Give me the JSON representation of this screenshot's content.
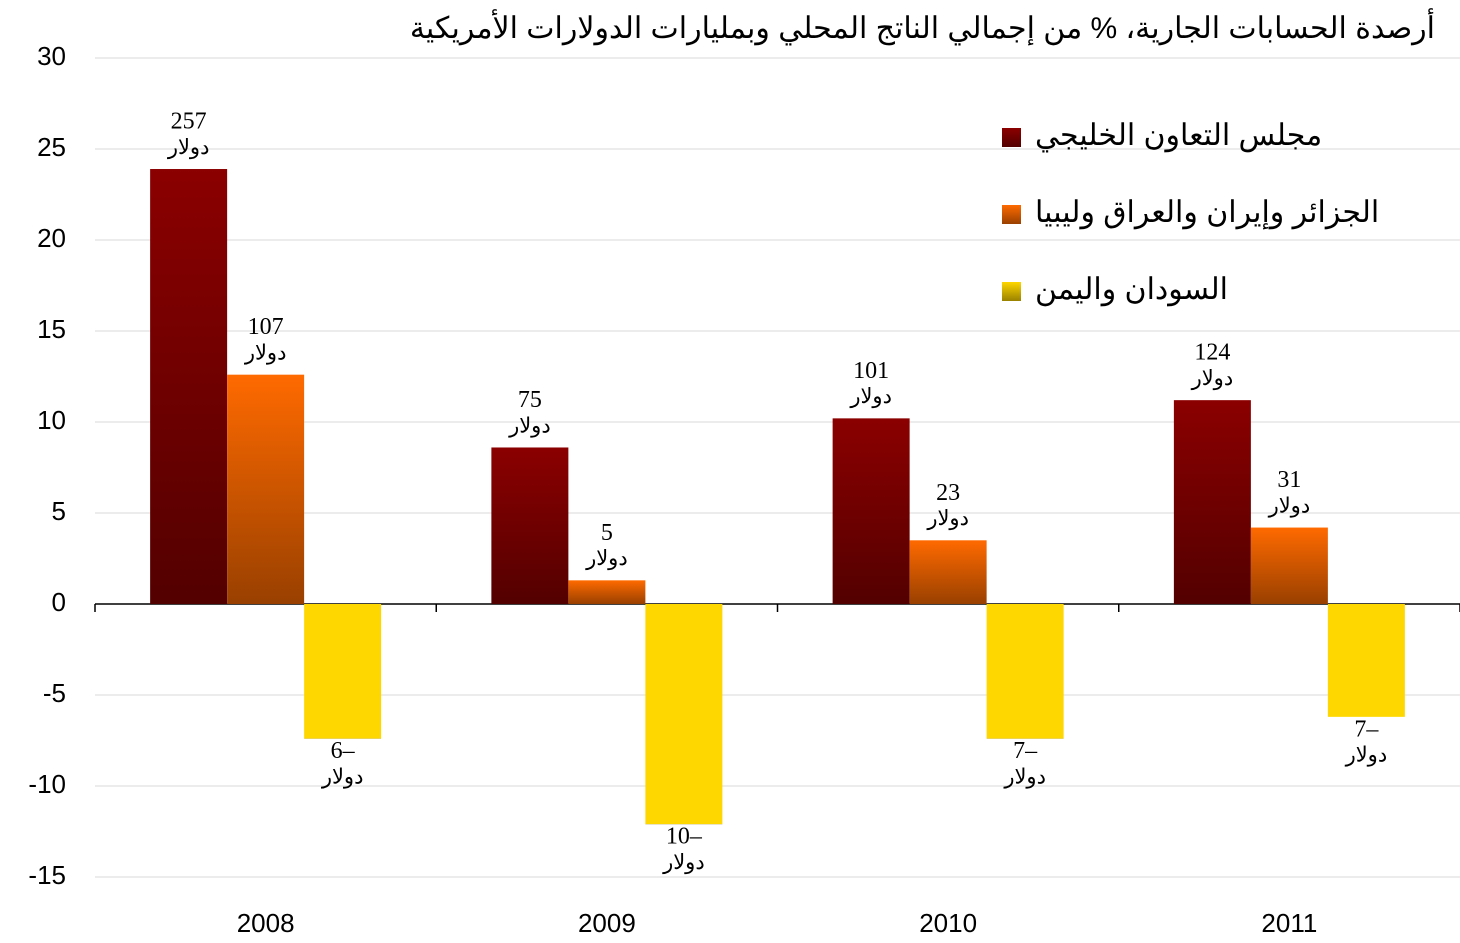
{
  "chart_data": {
    "type": "bar",
    "title": "أرصدة الحسابات الجارية، % من إجمالي الناتج المحلي وبمليارات الدولارات الأمريكية",
    "categories": [
      "2008",
      "2009",
      "2010",
      "2011"
    ],
    "series": [
      {
        "name": "مجلس التعاون الخليجي",
        "color": "#8b0000",
        "values": [
          23.9,
          8.6,
          10.2,
          11.2
        ],
        "amount_labels": [
          "257",
          "75",
          "101",
          "124"
        ]
      },
      {
        "name": "الجزائر وإيران والعراق وليبيا",
        "color": "#ff6a00",
        "values": [
          12.6,
          1.3,
          3.5,
          4.2
        ],
        "amount_labels": [
          "107",
          "5",
          "23",
          "31"
        ]
      },
      {
        "name": "السودان واليمن",
        "color": "#ffd700",
        "values": [
          -7.4,
          -12.1,
          -7.4,
          -6.2
        ],
        "amount_labels": [
          "6–",
          "10–",
          "7–",
          "7–"
        ]
      }
    ],
    "amount_unit": "دولار",
    "ylim": [
      -15,
      30
    ],
    "yticks": [
      -15,
      -10,
      -5,
      0,
      5,
      10,
      15,
      20,
      25,
      30
    ],
    "grid": true,
    "legend": "upper right"
  }
}
